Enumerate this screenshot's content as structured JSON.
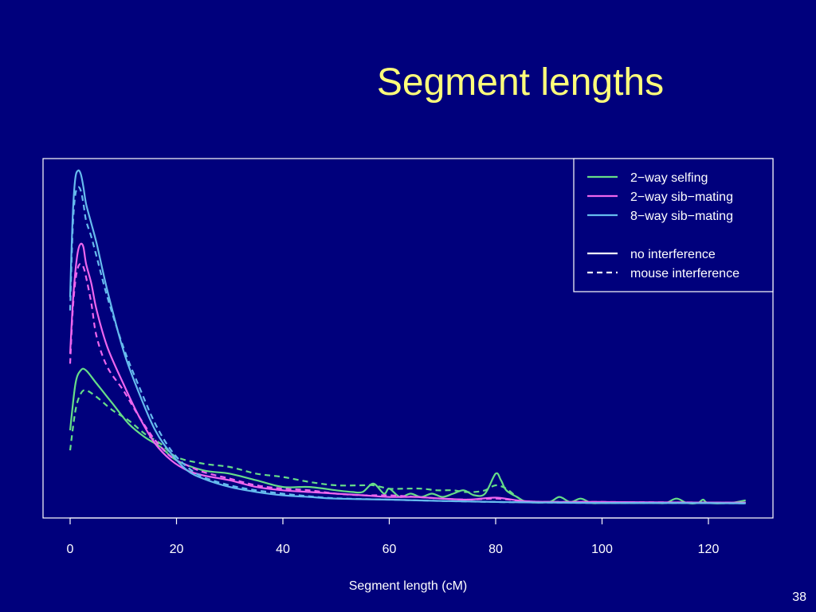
{
  "slide": {
    "title": "Segment lengths",
    "page_number": "38",
    "background": "#00007c",
    "title_color": "#ffff7a"
  },
  "chart_data": {
    "type": "line",
    "title": "",
    "xlabel": "Segment length (cM)",
    "ylabel": "",
    "xlim": [
      -5,
      132
    ],
    "ylim": [
      0,
      1
    ],
    "xticks": [
      0,
      20,
      40,
      60,
      80,
      100,
      120
    ],
    "grid": false,
    "legend_position": "top-right",
    "legend": {
      "color_entries": [
        {
          "label": "2−way selfing",
          "color": "#66dd88"
        },
        {
          "label": "2−way sib−mating",
          "color": "#ee66ee"
        },
        {
          "label": "8−way sib−mating",
          "color": "#66bbee"
        }
      ],
      "style_entries": [
        {
          "label": "no interference",
          "style": "solid"
        },
        {
          "label": "mouse interference",
          "style": "dashed"
        }
      ]
    },
    "series": [
      {
        "name": "2−way selfing",
        "interference": "no interference",
        "color": "#66dd88",
        "style": "solid",
        "x": [
          0,
          1,
          2,
          3,
          5,
          8,
          11,
          14,
          17,
          20,
          25,
          30,
          35,
          40,
          45,
          50,
          53,
          55,
          57,
          59,
          60,
          62,
          64,
          66,
          68,
          70,
          72,
          74,
          76,
          78,
          80,
          81,
          82,
          84,
          86,
          90,
          92,
          94,
          96,
          98,
          100,
          105,
          110,
          112,
          114,
          116,
          118,
          119,
          120,
          124,
          127
        ],
        "y": [
          0.22,
          0.36,
          0.4,
          0.4,
          0.36,
          0.3,
          0.24,
          0.2,
          0.17,
          0.13,
          0.1,
          0.09,
          0.07,
          0.05,
          0.05,
          0.04,
          0.035,
          0.035,
          0.06,
          0.03,
          0.045,
          0.02,
          0.03,
          0.02,
          0.03,
          0.02,
          0.03,
          0.04,
          0.025,
          0.03,
          0.09,
          0.07,
          0.04,
          0.02,
          0.005,
          0.005,
          0.02,
          0.005,
          0.015,
          0.002,
          0.002,
          0.002,
          0.002,
          0.002,
          0.015,
          0.002,
          0.002,
          0.012,
          0.002,
          0.002,
          0.01
        ]
      },
      {
        "name": "2−way selfing",
        "interference": "mouse interference",
        "color": "#66dd88",
        "style": "dashed",
        "x": [
          0,
          1,
          2,
          3,
          5,
          8,
          11,
          14,
          17,
          20,
          25,
          30,
          35,
          40,
          45,
          50,
          55,
          57,
          60,
          63,
          66,
          69,
          72,
          74,
          76,
          78,
          80,
          82,
          84,
          86,
          90,
          95,
          100,
          110,
          127
        ],
        "y": [
          0.16,
          0.28,
          0.33,
          0.34,
          0.32,
          0.28,
          0.25,
          0.21,
          0.18,
          0.14,
          0.12,
          0.11,
          0.09,
          0.08,
          0.065,
          0.055,
          0.055,
          0.055,
          0.045,
          0.045,
          0.045,
          0.04,
          0.04,
          0.035,
          0.035,
          0.04,
          0.055,
          0.045,
          0.02,
          0.005,
          0.005,
          0.005,
          0.002,
          0.002,
          0.002
        ]
      },
      {
        "name": "2−way sib−mating",
        "interference": "no interference",
        "color": "#ee66ee",
        "style": "solid",
        "x": [
          0,
          0.5,
          1,
          1.5,
          2,
          2.5,
          3,
          4,
          5,
          7,
          10,
          13,
          16,
          19,
          22,
          25,
          30,
          35,
          40,
          45,
          50,
          55,
          60,
          65,
          70,
          75,
          80,
          85,
          90,
          95,
          100,
          110,
          127
        ],
        "y": [
          0.45,
          0.6,
          0.7,
          0.76,
          0.78,
          0.77,
          0.72,
          0.66,
          0.58,
          0.47,
          0.36,
          0.26,
          0.18,
          0.13,
          0.1,
          0.085,
          0.07,
          0.05,
          0.04,
          0.035,
          0.03,
          0.025,
          0.02,
          0.02,
          0.015,
          0.012,
          0.018,
          0.008,
          0.005,
          0.005,
          0.005,
          0.004,
          0.003
        ]
      },
      {
        "name": "2−way sib−mating",
        "interference": "mouse interference",
        "color": "#ee66ee",
        "style": "dashed",
        "x": [
          0,
          0.5,
          1,
          1.5,
          2,
          2.5,
          3,
          4,
          5,
          7,
          10,
          13,
          16,
          19,
          22,
          25,
          30,
          35,
          40,
          45,
          50,
          55,
          60,
          65,
          70,
          75,
          80,
          85,
          90,
          100,
          110,
          127
        ],
        "y": [
          0.42,
          0.58,
          0.67,
          0.71,
          0.72,
          0.71,
          0.68,
          0.6,
          0.5,
          0.41,
          0.34,
          0.26,
          0.19,
          0.14,
          0.115,
          0.095,
          0.075,
          0.055,
          0.045,
          0.04,
          0.03,
          0.025,
          0.025,
          0.02,
          0.015,
          0.012,
          0.015,
          0.008,
          0.005,
          0.005,
          0.004,
          0.003
        ]
      },
      {
        "name": "8−way sib−mating",
        "interference": "no interference",
        "color": "#66bbee",
        "style": "solid",
        "x": [
          0,
          0.3,
          0.6,
          1,
          1.5,
          2,
          2.5,
          3,
          4,
          5,
          7,
          10,
          13,
          16,
          19,
          22,
          25,
          30,
          35,
          40,
          45,
          50,
          60,
          70,
          80,
          90,
          100,
          110,
          127
        ],
        "y": [
          0.62,
          0.78,
          0.9,
          0.98,
          1.0,
          0.99,
          0.95,
          0.9,
          0.84,
          0.78,
          0.64,
          0.46,
          0.33,
          0.22,
          0.15,
          0.1,
          0.075,
          0.05,
          0.035,
          0.025,
          0.02,
          0.015,
          0.012,
          0.008,
          0.005,
          0.003,
          0.002,
          0.002,
          0.001
        ]
      },
      {
        "name": "8−way sib−mating",
        "interference": "mouse interference",
        "color": "#66bbee",
        "style": "dashed",
        "x": [
          0,
          0.3,
          0.6,
          1,
          1.5,
          2,
          2.5,
          3,
          4,
          5,
          7,
          10,
          13,
          16,
          19,
          22,
          25,
          30,
          35,
          40,
          45,
          50,
          60,
          70,
          80,
          90,
          100,
          110,
          127
        ],
        "y": [
          0.58,
          0.74,
          0.86,
          0.93,
          0.95,
          0.94,
          0.9,
          0.85,
          0.8,
          0.74,
          0.62,
          0.47,
          0.35,
          0.24,
          0.16,
          0.11,
          0.08,
          0.055,
          0.04,
          0.03,
          0.022,
          0.016,
          0.012,
          0.008,
          0.005,
          0.003,
          0.002,
          0.002,
          0.001
        ]
      }
    ]
  }
}
